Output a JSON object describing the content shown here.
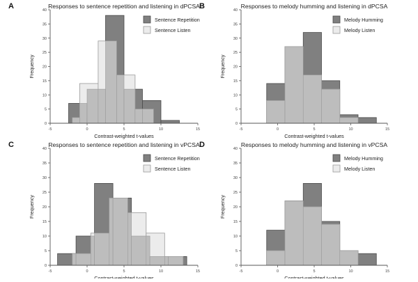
{
  "colors": {
    "dark": "#808080",
    "dark_stroke": "#4a4a4a",
    "light": "#ececec",
    "light_stroke": "#9a9a9a",
    "overlap": "#bdbdbd",
    "axis": "#555555"
  },
  "chart_data": [
    {
      "type": "bar",
      "panel_letter": "A",
      "title": "Responses to sentence repetition and listening in dPCSA",
      "xlabel": "Contrast-weighted t-values",
      "ylabel": "Frequency",
      "xlim": [
        -5,
        15
      ],
      "ylim": [
        0,
        40
      ],
      "xticks": [
        -5,
        0,
        5,
        10,
        15
      ],
      "yticks": [
        0,
        5,
        10,
        15,
        20,
        25,
        30,
        35,
        40
      ],
      "bin_width": 2.5,
      "legend_position": "top-right",
      "series": [
        {
          "name": "Sentence Repetition",
          "style": "dark",
          "bins": [
            {
              "x0": -2.5,
              "value": 7
            },
            {
              "x0": 0,
              "value": 12
            },
            {
              "x0": 2.5,
              "value": 38
            },
            {
              "x0": 5,
              "value": 12
            },
            {
              "x0": 7.5,
              "value": 8
            },
            {
              "x0": 10,
              "value": 1
            }
          ]
        },
        {
          "name": "Sentence Listen",
          "style": "light",
          "bins": [
            {
              "x0": -2,
              "value": 2
            },
            {
              "x0": -1,
              "value": 14
            },
            {
              "x0": 1.5,
              "value": 29
            },
            {
              "x0": 4,
              "value": 17
            },
            {
              "x0": 6.5,
              "value": 5
            }
          ]
        }
      ]
    },
    {
      "type": "bar",
      "panel_letter": "B",
      "title": "Responses to melody humming and listening in dPCSA",
      "xlabel": "Contrast-weighted t-values",
      "ylabel": "Frequency",
      "xlim": [
        -5,
        15
      ],
      "ylim": [
        0,
        40
      ],
      "xticks": [
        -5,
        0,
        5,
        10,
        15
      ],
      "yticks": [
        0,
        5,
        10,
        15,
        20,
        25,
        30,
        35,
        40
      ],
      "bin_width": 2.5,
      "legend_position": "top-right",
      "series": [
        {
          "name": "Melody Humming",
          "style": "dark",
          "bins": [
            {
              "x0": -1.5,
              "value": 14
            },
            {
              "x0": 1,
              "value": 27
            },
            {
              "x0": 3.5,
              "value": 32
            },
            {
              "x0": 6,
              "value": 15
            },
            {
              "x0": 8.5,
              "value": 3
            },
            {
              "x0": 11,
              "value": 2
            }
          ]
        },
        {
          "name": "Melody Listen",
          "style": "light",
          "bins": [
            {
              "x0": -1.5,
              "value": 8
            },
            {
              "x0": 1,
              "value": 27
            },
            {
              "x0": 3.5,
              "value": 17
            },
            {
              "x0": 6,
              "value": 12
            },
            {
              "x0": 8.5,
              "value": 2
            }
          ]
        }
      ]
    },
    {
      "type": "bar",
      "panel_letter": "C",
      "title": "Responses to sentence repetition and listening in vPCSA",
      "xlabel": "Contrast-weighted t-values",
      "ylabel": "Frequency",
      "xlim": [
        -5,
        15
      ],
      "ylim": [
        0,
        40
      ],
      "xticks": [
        -5,
        0,
        5,
        10,
        15
      ],
      "yticks": [
        0,
        5,
        10,
        15,
        20,
        25,
        30,
        35,
        40
      ],
      "bin_width": 2.5,
      "legend_position": "top-right",
      "series": [
        {
          "name": "Sentence Repetition",
          "style": "dark",
          "bins": [
            {
              "x0": -4,
              "value": 4
            },
            {
              "x0": -1.5,
              "value": 10
            },
            {
              "x0": 1,
              "value": 28
            },
            {
              "x0": 3.5,
              "value": 23
            },
            {
              "x0": 6,
              "value": 10
            },
            {
              "x0": 8.5,
              "value": 3
            },
            {
              "x0": 11,
              "value": 3
            }
          ]
        },
        {
          "name": "Sentence Listen",
          "style": "light",
          "bins": [
            {
              "x0": -2,
              "value": 4
            },
            {
              "x0": 0.5,
              "value": 11
            },
            {
              "x0": 3,
              "value": 23
            },
            {
              "x0": 5.5,
              "value": 18
            },
            {
              "x0": 8,
              "value": 11
            },
            {
              "x0": 10.5,
              "value": 3
            }
          ]
        }
      ]
    },
    {
      "type": "bar",
      "panel_letter": "D",
      "title": "Responses to melody humming and listening in vPCSA",
      "xlabel": "Contrast-weighted t-values",
      "ylabel": "Frequency",
      "xlim": [
        -5,
        15
      ],
      "ylim": [
        0,
        40
      ],
      "xticks": [
        -5,
        0,
        5,
        10,
        15
      ],
      "yticks": [
        0,
        5,
        10,
        15,
        20,
        25,
        30,
        35,
        40
      ],
      "bin_width": 2.5,
      "legend_position": "top-right",
      "series": [
        {
          "name": "Melody Humming",
          "style": "dark",
          "bins": [
            {
              "x0": -1.5,
              "value": 12
            },
            {
              "x0": 1,
              "value": 22
            },
            {
              "x0": 3.5,
              "value": 28
            },
            {
              "x0": 6,
              "value": 15
            },
            {
              "x0": 8.5,
              "value": 5
            },
            {
              "x0": 11,
              "value": 4
            }
          ]
        },
        {
          "name": "Melody Listen",
          "style": "light",
          "bins": [
            {
              "x0": -1.5,
              "value": 5
            },
            {
              "x0": 1,
              "value": 22
            },
            {
              "x0": 3.5,
              "value": 20
            },
            {
              "x0": 6,
              "value": 14
            },
            {
              "x0": 8.5,
              "value": 5
            }
          ]
        }
      ]
    }
  ]
}
